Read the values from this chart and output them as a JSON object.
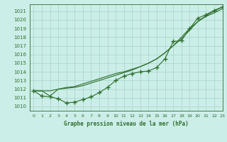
{
  "title": "Graphe pression niveau de la mer (hPa)",
  "bg_color": "#cceee8",
  "grid_color": "#aad8cc",
  "line_color": "#2d6e2d",
  "xlim": [
    -0.5,
    23
  ],
  "ylim": [
    1009.5,
    1021.8
  ],
  "yticks": [
    1010,
    1011,
    1012,
    1013,
    1014,
    1015,
    1016,
    1017,
    1018,
    1019,
    1020,
    1021
  ],
  "xticks": [
    0,
    1,
    2,
    3,
    4,
    5,
    6,
    7,
    8,
    9,
    10,
    11,
    12,
    13,
    14,
    15,
    16,
    17,
    18,
    19,
    20,
    21,
    22,
    23
  ],
  "line1_x": [
    0,
    1,
    2,
    3,
    4,
    5,
    6,
    7,
    8,
    9,
    10,
    11,
    12,
    13,
    14,
    15,
    16,
    17,
    18,
    19,
    20,
    21,
    22,
    23
  ],
  "line1_y": [
    1011.8,
    1011.2,
    1011.1,
    1010.9,
    1010.4,
    1010.5,
    1010.8,
    1011.1,
    1011.6,
    1012.2,
    1013.0,
    1013.5,
    1013.8,
    1014.0,
    1014.1,
    1014.5,
    1015.5,
    1017.5,
    1017.6,
    1019.0,
    1020.2,
    1020.6,
    1021.1,
    1021.5
  ],
  "line2_x": [
    0,
    1,
    2,
    3,
    4,
    5,
    6,
    7,
    8,
    9,
    10,
    11,
    12,
    13,
    14,
    15,
    16,
    17,
    18,
    19,
    20,
    21,
    22,
    23
  ],
  "line2_y": [
    1011.8,
    1011.8,
    1011.2,
    1012.0,
    1012.2,
    1012.3,
    1012.6,
    1012.9,
    1013.2,
    1013.5,
    1013.8,
    1014.0,
    1014.3,
    1014.6,
    1015.0,
    1015.5,
    1016.2,
    1017.0,
    1018.0,
    1019.0,
    1019.8,
    1020.5,
    1021.0,
    1021.5
  ],
  "line3_x": [
    0,
    1,
    2,
    3,
    4,
    5,
    6,
    7,
    8,
    9,
    10,
    11,
    12,
    13,
    14,
    15,
    16,
    17,
    18,
    19,
    20,
    21,
    22,
    23
  ],
  "line3_y": [
    1011.8,
    1011.8,
    1011.8,
    1012.0,
    1012.1,
    1012.2,
    1012.4,
    1012.7,
    1013.0,
    1013.3,
    1013.6,
    1013.9,
    1014.2,
    1014.6,
    1015.0,
    1015.5,
    1016.2,
    1017.0,
    1017.8,
    1018.8,
    1019.8,
    1020.4,
    1020.8,
    1021.3
  ]
}
